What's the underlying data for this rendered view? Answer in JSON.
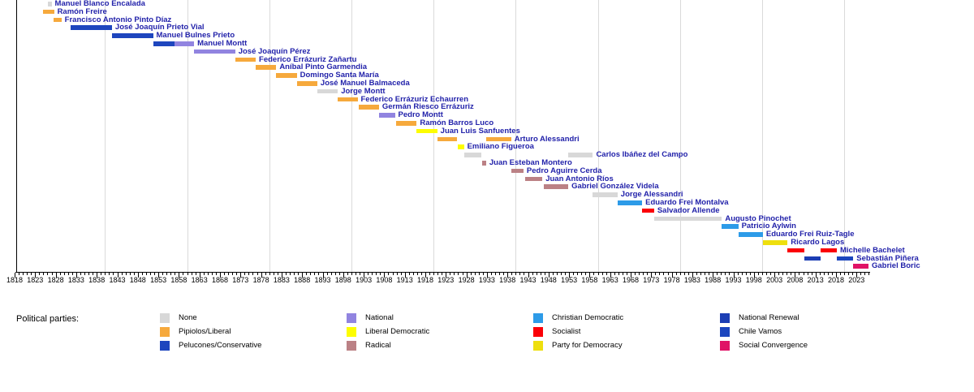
{
  "chart_data": {
    "type": "bar",
    "variant": "timeline-gantt",
    "description_visible_text_only": true,
    "x_axis": {
      "min": 1818,
      "max": 2026,
      "minor_tick_interval": 1,
      "major_tick_interval": 5,
      "label_interval": 5,
      "first_label": 1818,
      "last_label": 2023,
      "tick_labels": [
        1818,
        1823,
        1828,
        1833,
        1838,
        1843,
        1848,
        1853,
        1858,
        1863,
        1868,
        1873,
        1878,
        1883,
        1888,
        1893,
        1898,
        1903,
        1908,
        1913,
        1918,
        1923,
        1928,
        1933,
        1938,
        1943,
        1948,
        1953,
        1958,
        1963,
        1968,
        1973,
        1978,
        1983,
        1988,
        1993,
        1998,
        2003,
        2008,
        2013,
        2018,
        2023
      ]
    },
    "gridline_years": [
      1840,
      1860,
      1880,
      1900,
      1920,
      1940,
      1960,
      1980,
      2000,
      2020
    ],
    "grid_on": true,
    "colors": {
      "president_label_text": "#2222aa",
      "axis": "#000000",
      "gridline": "#dadada",
      "background": "#ffffff"
    },
    "legend": {
      "title": "Political parties:",
      "position": "bottom",
      "columns": 4,
      "rows": 3,
      "parties": [
        {
          "id": "none",
          "label": "None",
          "color": "#d8d8d8"
        },
        {
          "id": "pipiolos_liberal",
          "label": "Pipiolos/Liberal",
          "color": "#f6a93c"
        },
        {
          "id": "pelucones_conservative",
          "label": "Pelucones/Conservative",
          "color": "#1e46be"
        },
        {
          "id": "national",
          "label": "National",
          "color": "#9184e0"
        },
        {
          "id": "liberal_democratic",
          "label": "Liberal Democratic",
          "color": "#fdfd00"
        },
        {
          "id": "radical",
          "label": "Radical",
          "color": "#bb8185"
        },
        {
          "id": "christian_democratic",
          "label": "Christian Democratic",
          "color": "#2d9be8"
        },
        {
          "id": "socialist",
          "label": "Socialist",
          "color": "#fb0007"
        },
        {
          "id": "party_for_democracy",
          "label": "Party for Democracy",
          "color": "#eedf0e"
        },
        {
          "id": "national_renewal",
          "label": "National Renewal",
          "color": "#1c3eb4"
        },
        {
          "id": "chile_vamos",
          "label": "Chile Vamos",
          "color": "#1c46be"
        },
        {
          "id": "social_convergence",
          "label": "Social Convergence",
          "color": "#e01366"
        }
      ]
    },
    "presidents": [
      {
        "name": "Manuel Blanco Encalada",
        "terms": [
          {
            "start": 1826.2,
            "end": 1827.0,
            "party": "none"
          }
        ]
      },
      {
        "name": "Ramón Freire",
        "terms": [
          {
            "start": 1825.0,
            "end": 1827.6,
            "party": "pipiolos_liberal"
          }
        ]
      },
      {
        "name": "Francisco Antonio Pinto Díaz",
        "terms": [
          {
            "start": 1827.4,
            "end": 1829.4,
            "party": "pipiolos_liberal"
          }
        ]
      },
      {
        "name": "José Joaquín Prieto Vial",
        "terms": [
          {
            "start": 1831.7,
            "end": 1841.7,
            "party": "pelucones_conservative"
          }
        ]
      },
      {
        "name": "Manuel Bulnes Prieto",
        "terms": [
          {
            "start": 1841.7,
            "end": 1851.7,
            "party": "pelucones_conservative"
          }
        ]
      },
      {
        "name": "Manuel Montt",
        "terms": [
          {
            "start": 1851.7,
            "end": 1857.0,
            "party": "pelucones_conservative"
          },
          {
            "start": 1857.0,
            "end": 1861.7,
            "party": "national"
          }
        ]
      },
      {
        "name": "José Joaquín Pérez",
        "terms": [
          {
            "start": 1861.7,
            "end": 1871.7,
            "party": "national"
          }
        ]
      },
      {
        "name": "Federico Errázuriz Zañartu",
        "terms": [
          {
            "start": 1871.7,
            "end": 1876.7,
            "party": "pipiolos_liberal"
          }
        ]
      },
      {
        "name": "Aníbal Pinto Garmendia",
        "terms": [
          {
            "start": 1876.7,
            "end": 1881.7,
            "party": "pipiolos_liberal"
          }
        ]
      },
      {
        "name": "Domingo Santa María",
        "terms": [
          {
            "start": 1881.7,
            "end": 1886.7,
            "party": "pipiolos_liberal"
          }
        ]
      },
      {
        "name": "José Manuel Balmaceda",
        "terms": [
          {
            "start": 1886.7,
            "end": 1891.7,
            "party": "pipiolos_liberal"
          }
        ]
      },
      {
        "name": "Jorge Montt",
        "terms": [
          {
            "start": 1891.7,
            "end": 1896.7,
            "party": "none"
          }
        ]
      },
      {
        "name": "Federico Errázuriz Echaurren",
        "terms": [
          {
            "start": 1896.7,
            "end": 1901.5,
            "party": "pipiolos_liberal"
          }
        ]
      },
      {
        "name": "Germán Riesco Errázuriz",
        "terms": [
          {
            "start": 1901.7,
            "end": 1906.7,
            "party": "pipiolos_liberal"
          }
        ]
      },
      {
        "name": "Pedro Montt",
        "terms": [
          {
            "start": 1906.7,
            "end": 1910.6,
            "party": "national"
          }
        ]
      },
      {
        "name": "Ramón Barros Luco",
        "terms": [
          {
            "start": 1910.9,
            "end": 1915.9,
            "party": "pipiolos_liberal"
          }
        ]
      },
      {
        "name": "Juan Luis Sanfuentes",
        "terms": [
          {
            "start": 1915.9,
            "end": 1920.9,
            "party": "liberal_democratic"
          }
        ]
      },
      {
        "name": "Arturo Alessandri",
        "terms": [
          {
            "start": 1920.9,
            "end": 1925.8,
            "party": "pipiolos_liberal"
          },
          {
            "start": 1932.9,
            "end": 1938.9,
            "party": "pipiolos_liberal"
          }
        ]
      },
      {
        "name": "Emiliano Figueroa",
        "terms": [
          {
            "start": 1925.9,
            "end": 1927.4,
            "party": "liberal_democratic"
          }
        ]
      },
      {
        "name": "Carlos Ibáñez del Campo",
        "terms": [
          {
            "start": 1927.4,
            "end": 1931.6,
            "party": "none"
          },
          {
            "start": 1952.8,
            "end": 1958.8,
            "party": "none"
          }
        ]
      },
      {
        "name": "Juan Esteban Montero",
        "terms": [
          {
            "start": 1931.9,
            "end": 1932.8,
            "party": "radical"
          }
        ]
      },
      {
        "name": "Pedro Aguirre Cerda",
        "terms": [
          {
            "start": 1938.9,
            "end": 1941.9,
            "party": "radical"
          }
        ]
      },
      {
        "name": "Juan Antonio Ríos",
        "terms": [
          {
            "start": 1942.3,
            "end": 1946.5,
            "party": "radical"
          }
        ]
      },
      {
        "name": "Gabriel González Videla",
        "terms": [
          {
            "start": 1946.8,
            "end": 1952.8,
            "party": "radical"
          }
        ]
      },
      {
        "name": "Jorge Alessandri",
        "terms": [
          {
            "start": 1958.8,
            "end": 1964.8,
            "party": "none"
          }
        ]
      },
      {
        "name": "Eduardo Frei Montalva",
        "terms": [
          {
            "start": 1964.8,
            "end": 1970.8,
            "party": "christian_democratic"
          }
        ]
      },
      {
        "name": "Salvador Allende",
        "terms": [
          {
            "start": 1970.8,
            "end": 1973.7,
            "party": "socialist"
          }
        ]
      },
      {
        "name": "Augusto Pinochet",
        "terms": [
          {
            "start": 1973.7,
            "end": 1990.2,
            "party": "none"
          }
        ]
      },
      {
        "name": "Patricio Aylwin",
        "terms": [
          {
            "start": 1990.2,
            "end": 1994.2,
            "party": "christian_democratic"
          }
        ]
      },
      {
        "name": "Eduardo Frei Ruiz-Tagle",
        "terms": [
          {
            "start": 1994.2,
            "end": 2000.2,
            "party": "christian_democratic"
          }
        ]
      },
      {
        "name": "Ricardo Lagos",
        "terms": [
          {
            "start": 2000.2,
            "end": 2006.2,
            "party": "party_for_democracy"
          }
        ]
      },
      {
        "name": "Michelle Bachelet",
        "terms": [
          {
            "start": 2006.2,
            "end": 2010.2,
            "party": "socialist"
          },
          {
            "start": 2014.2,
            "end": 2018.2,
            "party": "socialist"
          }
        ]
      },
      {
        "name": "Sebastián Piñera",
        "terms": [
          {
            "start": 2010.2,
            "end": 2014.2,
            "party": "national_renewal"
          },
          {
            "start": 2018.2,
            "end": 2022.2,
            "party": "chile_vamos"
          }
        ]
      },
      {
        "name": "Gabriel Boric",
        "terms": [
          {
            "start": 2022.2,
            "end": 2025.9,
            "party": "social_convergence"
          }
        ]
      }
    ]
  }
}
